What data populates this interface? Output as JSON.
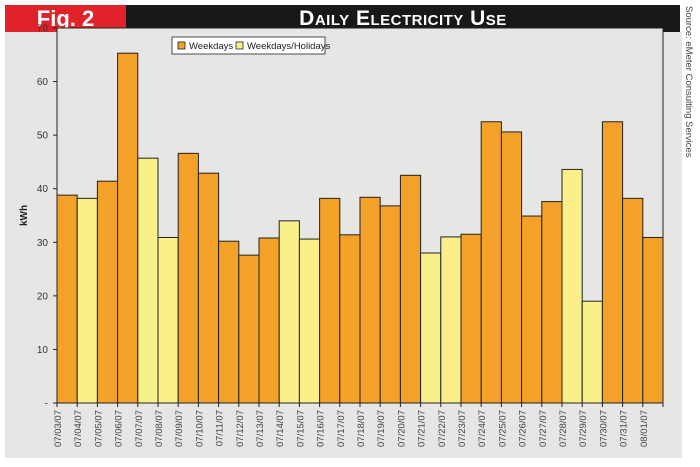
{
  "header": {
    "fig_label": "Fig. 2",
    "title": "Daily Electricity Use",
    "source": "Source: eMeter Consulting Services"
  },
  "colors": {
    "weekday": "#f4a12a",
    "holiday": "#faf08a",
    "fig_bg": "#e0222b",
    "title_bg": "#1a1718"
  },
  "chart_data": {
    "type": "bar",
    "title": "Daily Electricity Use",
    "xlabel": "",
    "ylabel": "kWh",
    "ylim": [
      0,
      70
    ],
    "yticks": [
      "-",
      "10",
      "20",
      "30",
      "40",
      "50",
      "60",
      "70"
    ],
    "legend": {
      "placement": "top-left",
      "entries": [
        "Weekdays",
        "Weekdays/Holidays"
      ]
    },
    "categories": [
      "07/03/07",
      "07/04/07",
      "07/05/07",
      "07/06/07",
      "07/07/07",
      "07/08/07",
      "07/09/07",
      "07/10/07",
      "07/11/07",
      "07/12/07",
      "07/13/07",
      "07/14/07",
      "07/15/07",
      "07/16/07",
      "07/17/07",
      "07/18/07",
      "07/19/07",
      "07/20/07",
      "07/21/07",
      "07/22/07",
      "07/23/07",
      "07/24/07",
      "07/25/07",
      "07/26/07",
      "07/27/07",
      "07/28/07",
      "07/29/07",
      "07/30/07",
      "07/31/07",
      "08/01/07"
    ],
    "values": [
      38.8,
      38.2,
      41.4,
      65.3,
      45.7,
      30.9,
      46.6,
      42.9,
      30.2,
      27.6,
      30.8,
      34.0,
      30.6,
      38.2,
      31.4,
      38.4,
      36.8,
      42.5,
      28.0,
      31.0,
      31.5,
      52.5,
      50.6,
      34.9,
      37.6,
      43.6,
      19.0,
      52.5,
      38.2,
      30.9
    ],
    "series_type": [
      "Weekdays",
      "Weekdays/Holidays",
      "Weekdays",
      "Weekdays",
      "Weekdays/Holidays",
      "Weekdays/Holidays",
      "Weekdays",
      "Weekdays",
      "Weekdays",
      "Weekdays",
      "Weekdays",
      "Weekdays/Holidays",
      "Weekdays/Holidays",
      "Weekdays",
      "Weekdays",
      "Weekdays",
      "Weekdays",
      "Weekdays",
      "Weekdays/Holidays",
      "Weekdays/Holidays",
      "Weekdays",
      "Weekdays",
      "Weekdays",
      "Weekdays",
      "Weekdays",
      "Weekdays/Holidays",
      "Weekdays/Holidays",
      "Weekdays",
      "Weekdays",
      "Weekdays"
    ]
  }
}
